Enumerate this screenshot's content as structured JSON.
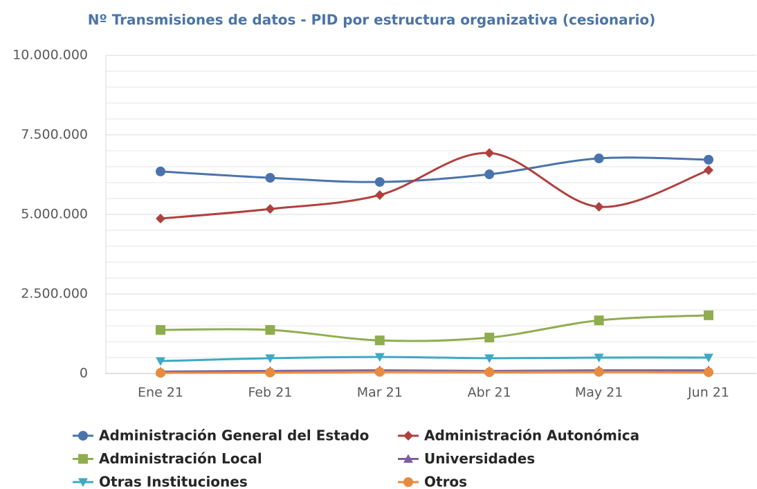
{
  "chart_data": {
    "type": "line",
    "title": "Nº Transmisiones de datos - PID por estructura organizativa (cesionario)",
    "categories": [
      "Ene 21",
      "Feb 21",
      "Mar 21",
      "Abr 21",
      "May 21",
      "Jun 21"
    ],
    "series": [
      {
        "name": "Administración General del Estado",
        "color": "#4a73ac",
        "marker": "circle",
        "values": [
          6350000,
          6150000,
          6020000,
          6260000,
          6760000,
          6720000
        ]
      },
      {
        "name": "Administración Autonómica",
        "color": "#b0403d",
        "marker": "diamond",
        "values": [
          4870000,
          5170000,
          5610000,
          6930000,
          5240000,
          6390000
        ]
      },
      {
        "name": "Administración Local",
        "color": "#8fad4f",
        "marker": "square",
        "values": [
          1370000,
          1370000,
          1040000,
          1130000,
          1670000,
          1830000
        ]
      },
      {
        "name": "Universidades",
        "color": "#7a5fa0",
        "marker": "triangle-up",
        "values": [
          60000,
          80000,
          100000,
          80000,
          100000,
          100000
        ]
      },
      {
        "name": "Otras Instituciones",
        "color": "#3ea9c3",
        "marker": "triangle-down",
        "values": [
          390000,
          480000,
          520000,
          480000,
          500000,
          500000
        ]
      },
      {
        "name": "Otros",
        "color": "#e88b3f",
        "marker": "circle",
        "values": [
          20000,
          30000,
          50000,
          40000,
          50000,
          40000
        ]
      }
    ],
    "ylim": [
      0,
      10000000
    ],
    "yticks": [
      0,
      {
        "value": 2500000,
        "label": "2.500.000"
      },
      {
        "value": 5000000,
        "label": "5.000.000"
      },
      {
        "value": 7500000,
        "label": "7.500.000"
      },
      {
        "value": 10000000,
        "label": "10.000.000"
      }
    ],
    "grid": true,
    "minor_grid_step": 500000,
    "smooth": true,
    "legend": "bottom"
  }
}
